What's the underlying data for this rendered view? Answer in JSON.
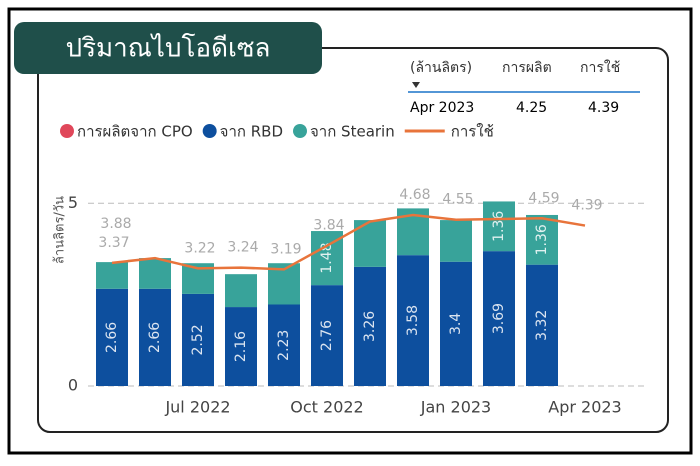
{
  "title": "ปริมาณไบโอดีเซล",
  "table": {
    "header": [
      "(ล้านลิตร)",
      "การผลิต",
      "การใช้"
    ],
    "rows": [
      [
        "Apr 2023",
        "4.25",
        "4.39"
      ]
    ]
  },
  "chart_data": {
    "type": "bar",
    "y_label": "ล้านลิตร/วัน",
    "categories": [
      null,
      null,
      "Jul 2022",
      null,
      null,
      "Oct 2022",
      null,
      null,
      "Jan 2023",
      null,
      null,
      "Apr 2023"
    ],
    "ylim": [
      0,
      5.5
    ],
    "yticks": [
      0,
      5
    ],
    "grid": true,
    "series": [
      {
        "name": "การผลิตจาก CPO",
        "color": "#e0475a",
        "values": [
          0,
          0,
          0,
          0,
          0,
          0,
          0,
          0,
          0,
          0,
          0,
          null
        ]
      },
      {
        "name": "จาก RBD",
        "color": "#0d4f9e",
        "values": [
          2.66,
          2.66,
          2.52,
          2.16,
          2.23,
          2.76,
          3.26,
          3.58,
          3.4,
          3.69,
          3.32,
          null
        ]
      },
      {
        "name": "จาก Stearin",
        "color": "#38a39a",
        "values": [
          0.73,
          0.84,
          0.84,
          0.9,
          1.13,
          1.48,
          1.28,
          1.28,
          1.14,
          1.36,
          1.36,
          null
        ],
        "value_labels": [
          null,
          null,
          null,
          null,
          null,
          "1.48",
          null,
          null,
          null,
          "1.36",
          "1.36",
          null
        ]
      },
      {
        "name": "การใช้",
        "type": "line",
        "color": "#e8743b",
        "values": [
          3.37,
          3.5,
          3.22,
          3.24,
          3.19,
          3.84,
          4.5,
          4.68,
          4.55,
          4.57,
          4.59,
          4.39
        ],
        "value_labels": [
          "3.37",
          null,
          "3.22",
          "3.24",
          "3.19",
          "3.84",
          null,
          "4.68",
          "4.55",
          null,
          "4.59",
          "4.39"
        ]
      }
    ],
    "annotations": [
      {
        "text": "3.88",
        "value": 3.88
      }
    ]
  }
}
